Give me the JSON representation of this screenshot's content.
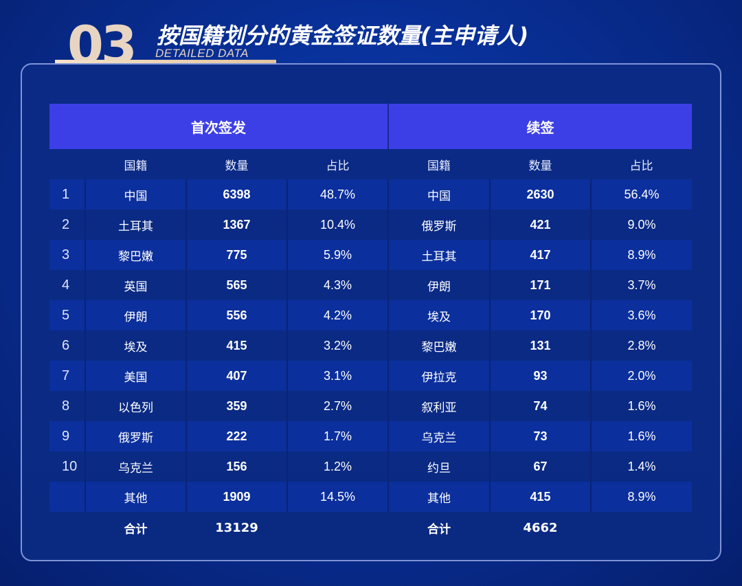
{
  "header": {
    "number": "03",
    "title": "按国籍划分的黄金签证数量(主申请人)",
    "subtitle": "DETAILED DATA"
  },
  "table": {
    "group_headers": [
      "首次签发",
      "续签"
    ],
    "column_headers": [
      "国籍",
      "数量",
      "占比",
      "国籍",
      "数量",
      "占比"
    ],
    "rows": [
      {
        "rank": "1",
        "first_country": "中国",
        "first_count": "6398",
        "first_share": "48.7%",
        "renew_country": "中国",
        "renew_count": "2630",
        "renew_share": "56.4%"
      },
      {
        "rank": "2",
        "first_country": "土耳其",
        "first_count": "1367",
        "first_share": "10.4%",
        "renew_country": "俄罗斯",
        "renew_count": "421",
        "renew_share": "9.0%"
      },
      {
        "rank": "3",
        "first_country": "黎巴嫩",
        "first_count": "775",
        "first_share": "5.9%",
        "renew_country": "土耳其",
        "renew_count": "417",
        "renew_share": "8.9%"
      },
      {
        "rank": "4",
        "first_country": "英国",
        "first_count": "565",
        "first_share": "4.3%",
        "renew_country": "伊朗",
        "renew_count": "171",
        "renew_share": "3.7%"
      },
      {
        "rank": "5",
        "first_country": "伊朗",
        "first_count": "556",
        "first_share": "4.2%",
        "renew_country": "埃及",
        "renew_count": "170",
        "renew_share": "3.6%"
      },
      {
        "rank": "6",
        "first_country": "埃及",
        "first_count": "415",
        "first_share": "3.2%",
        "renew_country": "黎巴嫩",
        "renew_count": "131",
        "renew_share": "2.8%"
      },
      {
        "rank": "7",
        "first_country": "美国",
        "first_count": "407",
        "first_share": "3.1%",
        "renew_country": "伊拉克",
        "renew_count": "93",
        "renew_share": "2.0%"
      },
      {
        "rank": "8",
        "first_country": "以色列",
        "first_count": "359",
        "first_share": "2.7%",
        "renew_country": "叙利亚",
        "renew_count": "74",
        "renew_share": "1.6%"
      },
      {
        "rank": "9",
        "first_country": "俄罗斯",
        "first_count": "222",
        "first_share": "1.7%",
        "renew_country": "乌克兰",
        "renew_count": "73",
        "renew_share": "1.6%"
      },
      {
        "rank": "10",
        "first_country": "乌克兰",
        "first_count": "156",
        "first_share": "1.2%",
        "renew_country": "约旦",
        "renew_count": "67",
        "renew_share": "1.4%"
      },
      {
        "rank": "",
        "first_country": "其他",
        "first_count": "1909",
        "first_share": "14.5%",
        "renew_country": "其他",
        "renew_count": "415",
        "renew_share": "8.9%"
      }
    ],
    "total": {
      "label": "合计",
      "first_count": "13129",
      "renew_count": "4662"
    }
  }
}
